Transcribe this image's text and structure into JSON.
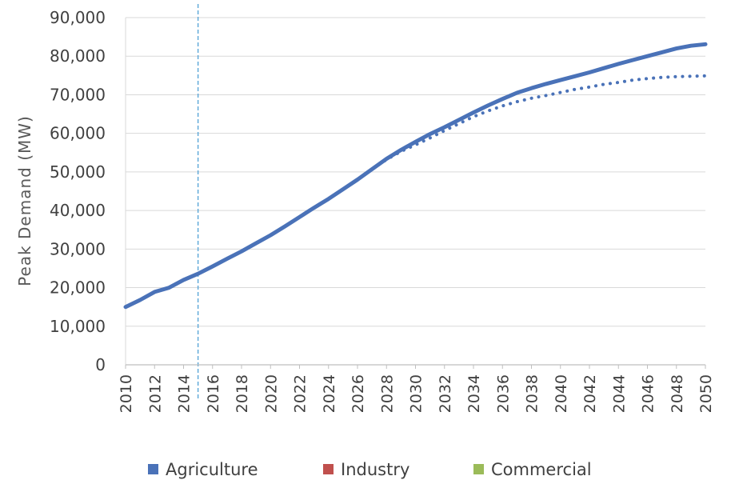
{
  "chart_data": {
    "type": "line",
    "title": "",
    "xlabel": "",
    "ylabel": "Peak Demand (MW)",
    "ylim": [
      0,
      90000
    ],
    "xlim": [
      2010,
      2050
    ],
    "y_ticks": [
      "0",
      "10,000",
      "20,000",
      "30,000",
      "40,000",
      "50,000",
      "60,000",
      "70,000",
      "80,000",
      "90,000"
    ],
    "y_tick_values": [
      0,
      10000,
      20000,
      30000,
      40000,
      50000,
      60000,
      70000,
      80000,
      90000
    ],
    "x_ticks": [
      "2010",
      "2012",
      "2014",
      "2016",
      "2018",
      "2020",
      "2022",
      "2024",
      "2026",
      "2028",
      "2030",
      "2032",
      "2034",
      "2036",
      "2038",
      "2040",
      "2042",
      "2044",
      "2046",
      "2048",
      "2050"
    ],
    "grid": true,
    "legend_position": "bottom",
    "legend": [
      {
        "label": "Agriculture",
        "color": "#4a72b8"
      },
      {
        "label": "Industry",
        "color": "#c0504d"
      },
      {
        "label": "Commercial",
        "color": "#9bbb59"
      }
    ],
    "vertical_marker": {
      "x": 2015,
      "color": "#5aa6d8",
      "style": "dashed"
    },
    "x": [
      2010,
      2011,
      2012,
      2013,
      2014,
      2015,
      2016,
      2017,
      2018,
      2019,
      2020,
      2021,
      2022,
      2023,
      2024,
      2025,
      2026,
      2027,
      2028,
      2029,
      2030,
      2031,
      2032,
      2033,
      2034,
      2035,
      2036,
      2037,
      2038,
      2039,
      2040,
      2041,
      2042,
      2043,
      2044,
      2045,
      2046,
      2047,
      2048,
      2049,
      2050
    ],
    "series": [
      {
        "style": "solid",
        "color": "#4a72b8",
        "values": [
          15000,
          16800,
          18900,
          20000,
          22000,
          23600,
          25500,
          27500,
          29400,
          31500,
          33600,
          35900,
          38300,
          40700,
          43000,
          45500,
          48000,
          50700,
          53400,
          55700,
          57800,
          59800,
          61600,
          63500,
          65400,
          67200,
          68900,
          70500,
          71700,
          72800,
          73800,
          74800,
          75800,
          76900,
          78000,
          79000,
          80000,
          81000,
          82000,
          82700,
          83100
        ]
      },
      {
        "style": "dotted",
        "color": "#4a72b8",
        "values": [
          15000,
          16800,
          18900,
          20000,
          22000,
          23600,
          25500,
          27500,
          29400,
          31500,
          33600,
          35900,
          38300,
          40700,
          43000,
          45500,
          48000,
          50700,
          53200,
          55300,
          57000,
          58800,
          60700,
          62500,
          64300,
          65800,
          67100,
          68200,
          69100,
          69800,
          70600,
          71400,
          72000,
          72700,
          73200,
          73800,
          74200,
          74500,
          74700,
          74800,
          74900
        ]
      }
    ]
  }
}
